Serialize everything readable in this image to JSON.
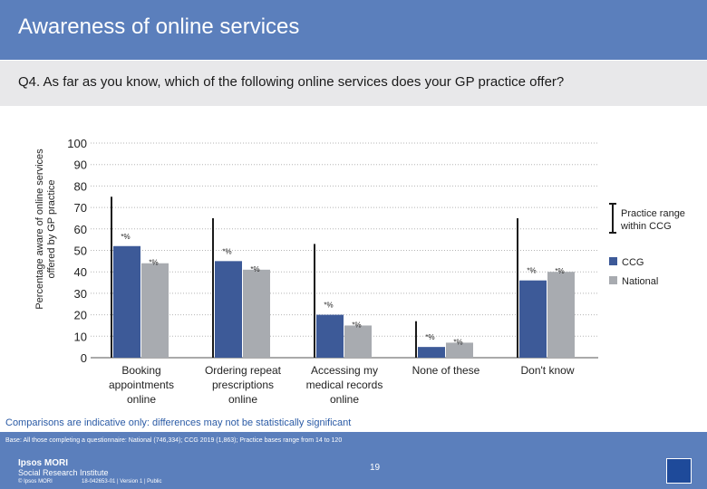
{
  "title": "Awareness of online services",
  "question": "Q4. As far as you know, which of the following online services does your GP practice offer?",
  "y_axis_label": "Percentage aware of online services offered by GP practice",
  "note": "Comparisons are indicative only: differences may not be statistically significant",
  "base": "Base: All those completing a questionnaire: National (746,334); CCG 2019 (1,863); Practice bases range from 14 to 120",
  "footer": {
    "logo_line1": "Ipsos MORI",
    "logo_line2": "Social Research Institute",
    "copyright": "© Ipsos MORI",
    "job_ref": "18-042653-01 | Version 1 | Public",
    "page_number": "19"
  },
  "colors": {
    "ccg": "#3d5a98",
    "national": "#a8abb0",
    "range": "#1a1a1a"
  },
  "chart_data": {
    "type": "bar",
    "categories": [
      "Booking appointments online",
      "Ordering repeat prescriptions online",
      "Accessing my medical records online",
      "None of these",
      "Don't know"
    ],
    "category_lines": [
      [
        "Booking",
        "appointments",
        "online"
      ],
      [
        "Ordering repeat",
        "prescriptions",
        "online"
      ],
      [
        "Accessing my",
        "medical records",
        "online"
      ],
      [
        "None of these"
      ],
      [
        "Don't know"
      ]
    ],
    "series": [
      {
        "name": "CCG",
        "values": [
          52,
          45,
          20,
          5,
          36
        ],
        "labels": [
          "*%",
          "*%",
          "*%",
          "*%",
          "*%"
        ]
      },
      {
        "name": "National",
        "values": [
          44,
          41,
          15,
          7,
          40
        ],
        "labels": [
          "*%",
          "*%",
          "*%",
          "*%",
          "*%"
        ]
      }
    ],
    "practice_range": {
      "name": "Practice range within CCG",
      "min": [
        0,
        0,
        0,
        0,
        0
      ],
      "max": [
        75,
        65,
        53,
        17,
        65
      ]
    },
    "ylim": [
      0,
      100
    ],
    "yticks": [
      0,
      10,
      20,
      30,
      40,
      50,
      60,
      70,
      80,
      90,
      100
    ],
    "legend": [
      "Practice range within CCG",
      "CCG",
      "National"
    ]
  }
}
